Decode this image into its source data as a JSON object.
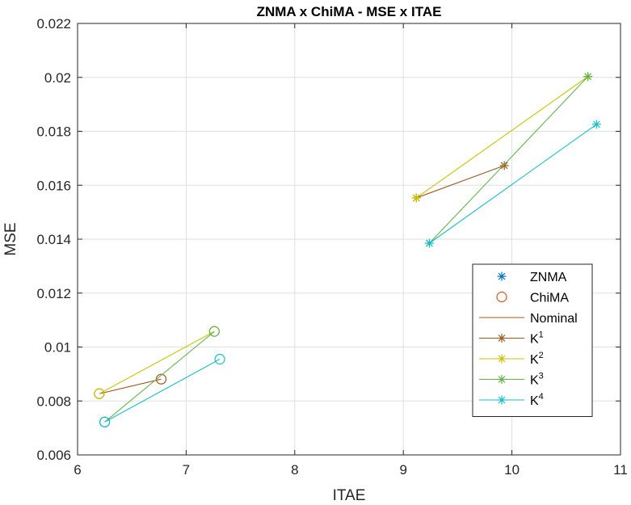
{
  "chart_data": {
    "type": "line",
    "title": "ZNMA x ChiMA - MSE  x ITAE",
    "xlabel": "ITAE",
    "ylabel": "MSE",
    "xlim": [
      6,
      11
    ],
    "ylim": [
      0.006,
      0.022
    ],
    "xticks": [
      "6",
      "7",
      "8",
      "9",
      "10",
      "11"
    ],
    "yticks": [
      "0.006",
      "0.008",
      "0.01",
      "0.012",
      "0.014",
      "0.016",
      "0.018",
      "0.02",
      "0.022"
    ],
    "grid": true,
    "legend_position": "bottom-right",
    "colors": {
      "znma_marker": "#0072BD",
      "chima_marker": "#D95319",
      "nominal": "#A2571C",
      "k1": "#A2571C",
      "k2": "#C9C300",
      "k3": "#62B34A",
      "k4": "#14BEC8"
    },
    "legend": [
      {
        "label": "ZNMA",
        "sup": "",
        "kind": "star",
        "color": "#0072BD"
      },
      {
        "label": "ChiMA",
        "sup": "",
        "kind": "circle",
        "color": "#D95319"
      },
      {
        "label": "Nominal",
        "sup": "",
        "kind": "line",
        "color": "#A2571C"
      },
      {
        "label": "K",
        "sup": "1",
        "kind": "linestar",
        "color": "#A2571C"
      },
      {
        "label": "K",
        "sup": "2",
        "kind": "linestar",
        "color": "#C9C300"
      },
      {
        "label": "K",
        "sup": "3",
        "kind": "linestar",
        "color": "#62B34A"
      },
      {
        "label": "K",
        "sup": "4",
        "kind": "linestar",
        "color": "#14BEC8"
      }
    ],
    "series": [
      {
        "key": "k1",
        "method": "ZNMA",
        "color": "#A2571C",
        "x": [
          9.12,
          9.93
        ],
        "y": [
          0.01553,
          0.01673
        ]
      },
      {
        "key": "k2",
        "method": "ZNMA",
        "color": "#C9C300",
        "x": [
          9.12,
          10.7
        ],
        "y": [
          0.01553,
          0.02003
        ]
      },
      {
        "key": "k3",
        "method": "ZNMA",
        "color": "#62B34A",
        "x": [
          9.24,
          10.7
        ],
        "y": [
          0.01385,
          0.02003
        ]
      },
      {
        "key": "k4",
        "method": "ZNMA",
        "color": "#14BEC8",
        "x": [
          9.24,
          10.78
        ],
        "y": [
          0.01385,
          0.01826
        ]
      },
      {
        "key": "k1",
        "method": "ChiMA",
        "color": "#A2571C",
        "x": [
          6.2,
          6.77
        ],
        "y": [
          0.00827,
          0.00881
        ]
      },
      {
        "key": "k2",
        "method": "ChiMA",
        "color": "#C9C300",
        "x": [
          6.2,
          7.26
        ],
        "y": [
          0.00827,
          0.01058
        ]
      },
      {
        "key": "k3",
        "method": "ChiMA",
        "color": "#62B34A",
        "x": [
          6.25,
          7.26
        ],
        "y": [
          0.00722,
          0.01058
        ]
      },
      {
        "key": "k4",
        "method": "ChiMA",
        "color": "#14BEC8",
        "x": [
          6.25,
          7.31
        ],
        "y": [
          0.00722,
          0.00955
        ]
      }
    ]
  }
}
